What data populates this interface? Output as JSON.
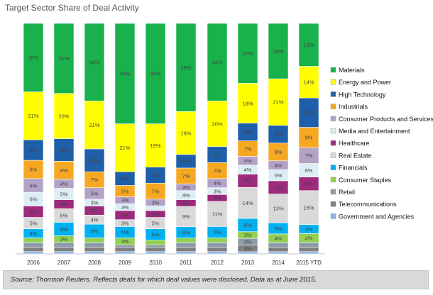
{
  "chart_data": {
    "type": "bar",
    "stacked": true,
    "title": "Target Sector Share of Deal Activity",
    "categories": [
      "2006",
      "2007",
      "2008",
      "2009",
      "2010",
      "2011",
      "2012",
      "2013",
      "2014",
      "2015 YTD"
    ],
    "series": [
      {
        "name": "Government and Agencies",
        "color": "#8eb4e3",
        "values": [
          1,
          1,
          1,
          1,
          1,
          1,
          1,
          1,
          1,
          1
        ],
        "labels": [
          "1%",
          "1%",
          "1%",
          "1%",
          "1%",
          "1%",
          "1%",
          "1%",
          "1%",
          "1%"
        ]
      },
      {
        "name": "Telecommunications",
        "color": "#7f7f7f",
        "values": [
          2,
          2,
          2,
          2,
          2,
          2,
          2,
          3,
          2,
          2
        ],
        "labels": [
          "2%",
          "2%",
          "2%",
          "2%",
          "2%",
          "2%",
          "2%",
          "3%",
          "2%",
          "2%"
        ]
      },
      {
        "name": "Retail",
        "color": "#8c9aaa",
        "values": [
          2,
          2,
          2,
          1,
          1,
          2,
          2,
          3,
          2,
          2
        ],
        "labels": [
          "2%",
          "2%",
          "2%",
          "1%",
          "1%",
          "2%",
          "2%",
          "3%",
          "2%",
          "2%"
        ]
      },
      {
        "name": "Consumer Staples",
        "color": "#92d050",
        "values": [
          2,
          3,
          2,
          3,
          2,
          2,
          2,
          3,
          4,
          4
        ],
        "labels": [
          "2%",
          "3%",
          "2%",
          "3%",
          "2%",
          "2%",
          "2%",
          "3%",
          "4%",
          "4%"
        ]
      },
      {
        "name": "Financials",
        "color": "#00b0f0",
        "values": [
          4,
          6,
          6,
          5,
          5,
          5,
          5,
          6,
          5,
          4
        ],
        "labels": [
          "4%",
          "6%",
          "6%",
          "5%",
          "5%",
          "5%",
          "5%",
          "6%",
          "5%",
          "4%"
        ]
      },
      {
        "name": "Real Estate",
        "color": "#d9d9d9",
        "values": [
          5,
          6,
          4,
          3,
          5,
          9,
          11,
          14,
          13,
          15
        ],
        "labels": [
          "5%",
          "6%",
          "4%",
          "3%",
          "5%",
          "9%",
          "11%",
          "14%",
          "13%",
          "15%"
        ]
      },
      {
        "name": "Healthcare",
        "color": "#9e2a7e",
        "values": [
          5,
          4,
          4,
          4,
          3,
          3,
          3,
          6,
          6,
          6
        ],
        "labels": [
          "5%",
          "4%",
          "4%",
          "4%",
          "3%",
          "3%",
          "3%",
          "6%",
          "6%",
          "6%"
        ]
      },
      {
        "name": "Media and Entertainment",
        "color": "#dbeef4",
        "values": [
          6,
          5,
          3,
          3,
          2,
          4,
          3,
          4,
          5,
          6
        ],
        "labels": [
          "6%",
          "5%",
          "3%",
          "3%",
          "2%",
          "4%",
          "3%",
          "4%",
          "5%",
          "6%"
        ]
      },
      {
        "name": "Consumer Products and Services",
        "color": "#b3a2c7",
        "values": [
          6,
          4,
          5,
          3,
          3,
          3,
          4,
          4,
          4,
          7
        ],
        "labels": [
          "6%",
          "4%",
          "5%",
          "3%",
          "3%",
          "3%",
          "4%",
          "4%",
          "4%",
          "7%"
        ]
      },
      {
        "name": "Industrials",
        "color": "#f7a823",
        "values": [
          8,
          8,
          7,
          5,
          7,
          7,
          7,
          7,
          8,
          9
        ],
        "labels": [
          "8%",
          "8%",
          "7%",
          "5%",
          "7%",
          "7%",
          "7%",
          "7%",
          "8%",
          "9%"
        ]
      },
      {
        "name": "High Technology",
        "color": "#1f5ea8",
        "values": [
          9,
          10,
          10,
          6,
          7,
          6,
          7,
          8,
          8,
          13
        ],
        "labels": [
          "9%",
          "10%",
          "10%",
          "6%",
          "7%",
          "6%",
          "7%",
          "8%",
          "8%",
          "13%"
        ]
      },
      {
        "name": "Energy and Power",
        "color": "#ffff00",
        "values": [
          21,
          20,
          21,
          21,
          19,
          19,
          20,
          18,
          21,
          14
        ],
        "labels": [
          "21%",
          "20%",
          "21%",
          "21%",
          "19%",
          "19%",
          "20%",
          "18%",
          "21%",
          "14%"
        ]
      },
      {
        "name": "Materials",
        "color": "#18b14b",
        "values": [
          30,
          31,
          34,
          44,
          44,
          39,
          34,
          27,
          25,
          19
        ],
        "labels": [
          "30%",
          "31%",
          "34%",
          "44%",
          "44%",
          "39%",
          "34%",
          "27%",
          "25%",
          "19%"
        ]
      }
    ],
    "ylim": [
      0,
      100
    ],
    "legend_position": "right"
  },
  "footer": {
    "source": "Source: Thomson Reuters.  Reflects deals for which deal values were disclosed.  Data as at June 2015."
  }
}
